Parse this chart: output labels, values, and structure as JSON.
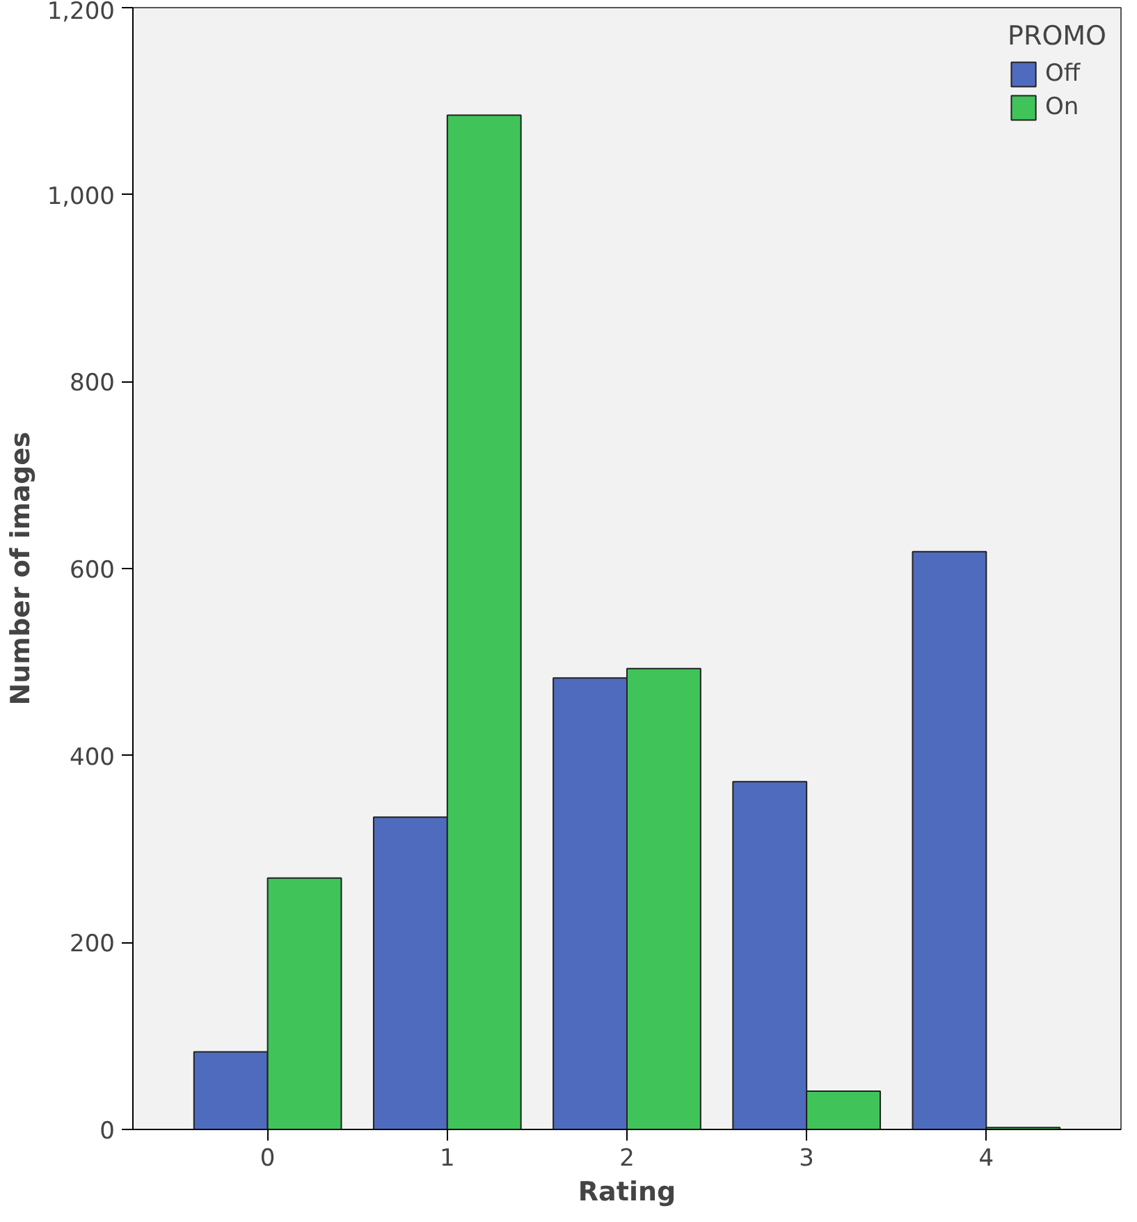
{
  "chart_data": {
    "type": "bar",
    "xlabel": "Rating",
    "ylabel": "Number of images",
    "legend_title": "PROMO",
    "categories": [
      "0",
      "1",
      "2",
      "3",
      "4"
    ],
    "series": [
      {
        "name": "Off",
        "color": "#4f6bbd",
        "values": [
          83,
          334,
          483,
          372,
          618
        ]
      },
      {
        "name": "On",
        "color": "#40c45a",
        "values": [
          269,
          1085,
          493,
          41,
          2
        ]
      }
    ],
    "ylim": [
      0,
      1200
    ],
    "yticks": [
      0,
      {
        "value": 200,
        "label": "200"
      },
      {
        "value": 400,
        "label": "400"
      },
      {
        "value": 600,
        "label": "600"
      },
      {
        "value": 800,
        "label": "800"
      },
      {
        "value": 1000,
        "label": "1,000"
      },
      {
        "value": 1200,
        "label": "1,200"
      }
    ],
    "grid": false,
    "legend": "top right"
  }
}
